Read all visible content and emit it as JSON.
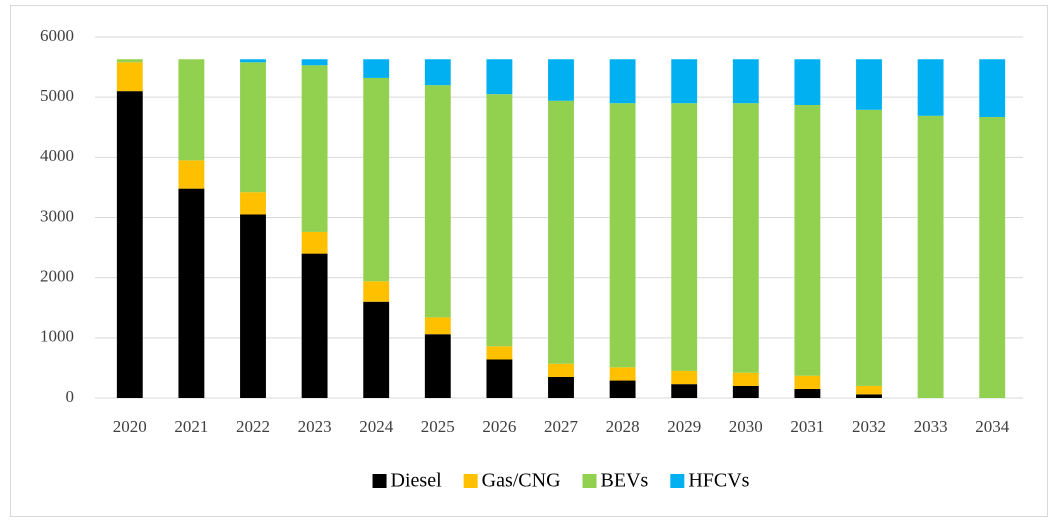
{
  "chart_data": {
    "type": "stacked_bar",
    "categories": [
      "2020",
      "2021",
      "2022",
      "2023",
      "2024",
      "2025",
      "2026",
      "2027",
      "2028",
      "2029",
      "2030",
      "2031",
      "2032",
      "2033",
      "2034"
    ],
    "series": [
      {
        "name": "Diesel",
        "color": "#000000",
        "values": [
          5100,
          3480,
          3050,
          2400,
          1600,
          1060,
          640,
          350,
          290,
          230,
          200,
          150,
          60,
          0,
          0
        ]
      },
      {
        "name": "Gas/CNG",
        "color": "#ffc000",
        "values": [
          480,
          470,
          370,
          360,
          340,
          280,
          220,
          220,
          220,
          220,
          220,
          220,
          140,
          0,
          0
        ]
      },
      {
        "name": "BEVs",
        "color": "#92d050",
        "values": [
          50,
          1680,
          2160,
          2770,
          3380,
          3860,
          4190,
          4370,
          4390,
          4450,
          4480,
          4500,
          4590,
          4690,
          4670
        ]
      },
      {
        "name": "HFCVs",
        "color": "#00b0f0",
        "values": [
          0,
          0,
          50,
          100,
          310,
          430,
          580,
          690,
          730,
          730,
          730,
          760,
          840,
          940,
          960
        ]
      }
    ],
    "ylim": [
      0,
      6000
    ],
    "yticks": [
      0,
      1000,
      2000,
      3000,
      4000,
      5000,
      6000
    ],
    "grid": true,
    "legend": "bottom"
  }
}
